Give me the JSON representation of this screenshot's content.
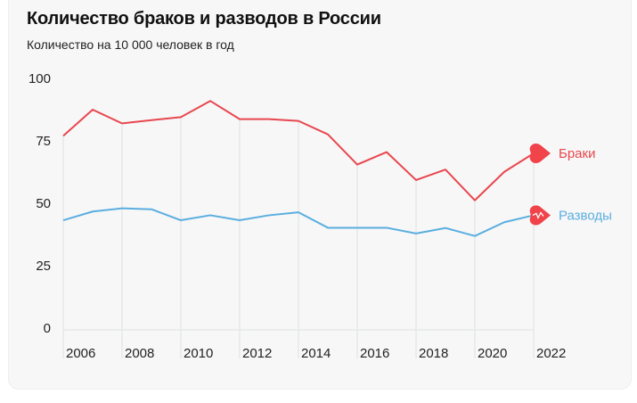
{
  "title": "Количество браков и разводов в России",
  "subtitle": "Количество на 10 000 человек в год",
  "chart_data": {
    "type": "line",
    "title": "Количество браков и разводов в России",
    "subtitle": "Количество на 10 000 человек в год",
    "x": [
      2006,
      2007,
      2008,
      2009,
      2010,
      2011,
      2012,
      2013,
      2014,
      2015,
      2016,
      2017,
      2018,
      2019,
      2020,
      2021,
      2022
    ],
    "x_tick_labels": [
      "2006",
      "2008",
      "2010",
      "2012",
      "2014",
      "2016",
      "2018",
      "2020",
      "2022"
    ],
    "y_tick_labels": [
      "100",
      "75",
      "50",
      "25",
      "0"
    ],
    "ylim": [
      0,
      100
    ],
    "grid": "vertical",
    "legend": "end-of-line labels",
    "series": [
      {
        "name": "Браки",
        "color": "#e8474f",
        "marker": "heart-icon",
        "values": [
          77,
          87.5,
          82,
          83.3,
          84.5,
          91,
          83.7,
          83.7,
          83,
          77.6,
          65.5,
          70.5,
          59.3,
          63.5,
          51.2,
          62.6,
          70
        ]
      },
      {
        "name": "Разводы",
        "color": "#5aaee0",
        "marker": "broken-heart-icon",
        "values": [
          43.2,
          46.7,
          48,
          47.6,
          43.2,
          45.2,
          43.2,
          45.2,
          46.4,
          40.2,
          40.2,
          40.2,
          37.9,
          40.1,
          36.9,
          42.4,
          45.2
        ]
      }
    ]
  }
}
